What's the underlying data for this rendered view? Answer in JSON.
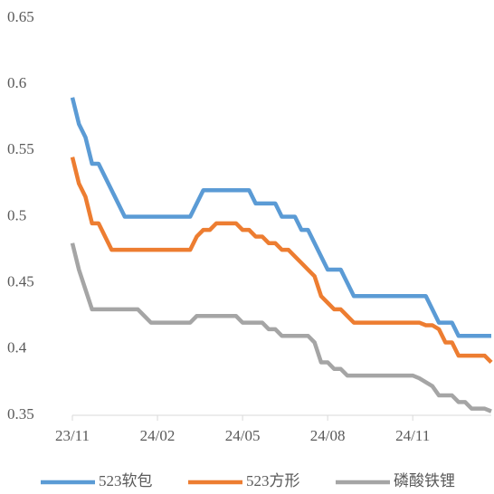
{
  "chart_data": {
    "type": "line",
    "x": [
      0,
      1,
      2,
      3,
      4,
      5,
      6,
      7,
      8,
      9,
      10,
      11,
      12,
      13,
      14,
      15,
      16,
      17,
      18,
      19,
      20,
      21,
      22,
      23,
      24,
      25,
      26,
      27,
      28,
      29,
      30,
      31,
      32,
      33,
      34,
      35,
      36,
      37,
      38,
      39,
      40,
      41,
      42,
      43,
      44,
      45,
      46,
      47,
      48,
      49,
      50,
      51,
      52,
      53,
      54,
      55,
      56,
      57,
      58,
      59,
      60,
      61,
      62,
      63,
      64
    ],
    "xlim": [
      0,
      64
    ],
    "xticks": [
      {
        "value": 0,
        "label": "23/11"
      },
      {
        "value": 13,
        "label": "24/02"
      },
      {
        "value": 26,
        "label": "24/05"
      },
      {
        "value": 39,
        "label": "24/08"
      },
      {
        "value": 52,
        "label": "24/11"
      }
    ],
    "ylim": [
      0.35,
      0.65
    ],
    "yticks": [
      0.35,
      0.4,
      0.45,
      0.5,
      0.55,
      0.6,
      0.65
    ],
    "legend": "bottom",
    "series": [
      {
        "name": "523软包",
        "color": "#5b9bd5",
        "values": [
          0.59,
          0.57,
          0.56,
          0.54,
          0.54,
          0.53,
          0.52,
          0.51,
          0.5,
          0.5,
          0.5,
          0.5,
          0.5,
          0.5,
          0.5,
          0.5,
          0.5,
          0.5,
          0.5,
          0.51,
          0.52,
          0.52,
          0.52,
          0.52,
          0.52,
          0.52,
          0.52,
          0.52,
          0.51,
          0.51,
          0.51,
          0.51,
          0.5,
          0.5,
          0.5,
          0.49,
          0.49,
          0.48,
          0.47,
          0.46,
          0.46,
          0.46,
          0.45,
          0.44,
          0.44,
          0.44,
          0.44,
          0.44,
          0.44,
          0.44,
          0.44,
          0.44,
          0.44,
          0.44,
          0.44,
          0.43,
          0.42,
          0.42,
          0.42,
          0.41,
          0.41,
          0.41,
          0.41,
          0.41,
          0.41
        ]
      },
      {
        "name": "523方形",
        "color": "#ed7d31",
        "values": [
          0.545,
          0.525,
          0.515,
          0.495,
          0.495,
          0.485,
          0.475,
          0.475,
          0.475,
          0.475,
          0.475,
          0.475,
          0.475,
          0.475,
          0.475,
          0.475,
          0.475,
          0.475,
          0.475,
          0.485,
          0.49,
          0.49,
          0.495,
          0.495,
          0.495,
          0.495,
          0.49,
          0.49,
          0.485,
          0.485,
          0.48,
          0.48,
          0.475,
          0.475,
          0.47,
          0.465,
          0.46,
          0.455,
          0.44,
          0.435,
          0.43,
          0.43,
          0.425,
          0.42,
          0.42,
          0.42,
          0.42,
          0.42,
          0.42,
          0.42,
          0.42,
          0.42,
          0.42,
          0.42,
          0.418,
          0.418,
          0.415,
          0.405,
          0.405,
          0.395,
          0.395,
          0.395,
          0.395,
          0.395,
          0.39
        ]
      },
      {
        "name": "磷酸铁锂",
        "color": "#a5a5a5",
        "values": [
          0.48,
          0.46,
          0.445,
          0.43,
          0.43,
          0.43,
          0.43,
          0.43,
          0.43,
          0.43,
          0.43,
          0.425,
          0.42,
          0.42,
          0.42,
          0.42,
          0.42,
          0.42,
          0.42,
          0.425,
          0.425,
          0.425,
          0.425,
          0.425,
          0.425,
          0.425,
          0.42,
          0.42,
          0.42,
          0.42,
          0.415,
          0.415,
          0.41,
          0.41,
          0.41,
          0.41,
          0.41,
          0.405,
          0.39,
          0.39,
          0.385,
          0.385,
          0.38,
          0.38,
          0.38,
          0.38,
          0.38,
          0.38,
          0.38,
          0.38,
          0.38,
          0.38,
          0.38,
          0.378,
          0.375,
          0.372,
          0.365,
          0.365,
          0.365,
          0.36,
          0.36,
          0.355,
          0.355,
          0.355,
          0.353
        ]
      }
    ]
  }
}
